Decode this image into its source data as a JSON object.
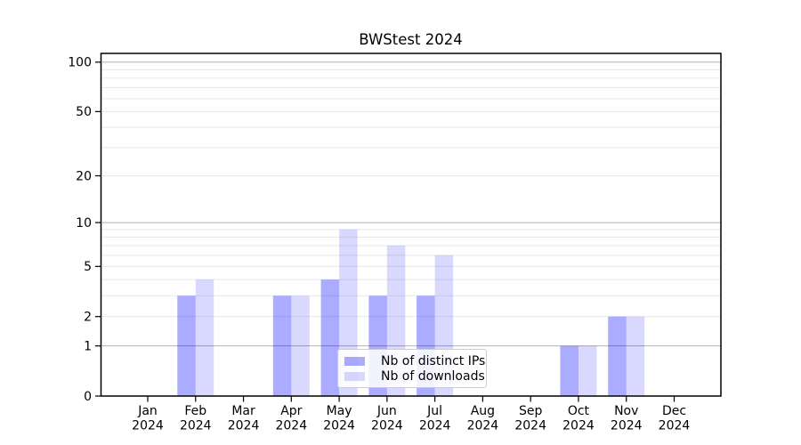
{
  "title": "BWStest 2024",
  "legend": {
    "items": [
      {
        "label": "Nb of distinct IPs",
        "color": "rgba(0,0,255,0.33)"
      },
      {
        "label": "Nb of downloads",
        "color": "rgba(0,0,255,0.15)"
      }
    ]
  },
  "chart_data": {
    "type": "bar",
    "title": "BWStest 2024",
    "categories": [
      "Jan 2024",
      "Feb 2024",
      "Mar 2024",
      "Apr 2024",
      "May 2024",
      "Jun 2024",
      "Jul 2024",
      "Aug 2024",
      "Sep 2024",
      "Oct 2024",
      "Nov 2024",
      "Dec 2024"
    ],
    "series": [
      {
        "name": "Nb of distinct IPs",
        "color": "rgba(0,0,255,0.33)",
        "values": [
          0,
          3,
          0,
          3,
          4,
          3,
          3,
          0,
          0,
          1,
          2,
          0
        ]
      },
      {
        "name": "Nb of downloads",
        "color": "rgba(0,0,255,0.15)",
        "values": [
          0,
          4,
          0,
          3,
          9,
          7,
          6,
          0,
          0,
          1,
          2,
          0
        ]
      }
    ],
    "xlabel": "",
    "ylabel": "",
    "yscale": "log1p",
    "ylim": [
      0,
      113
    ],
    "yticks": [
      0,
      1,
      2,
      5,
      10,
      20,
      50,
      100
    ],
    "major_gridlines": [
      1,
      10,
      100
    ],
    "minor_gridlines": [
      2,
      3,
      4,
      5,
      6,
      7,
      8,
      9,
      20,
      30,
      40,
      50,
      60,
      70,
      80,
      90
    ],
    "grid": true,
    "legend_position": "lower center",
    "colors": {
      "grid_major": "#b2b2b2",
      "grid_minor": "#e8e8e8",
      "spine": "#000000",
      "tick_label": "#000000"
    }
  }
}
